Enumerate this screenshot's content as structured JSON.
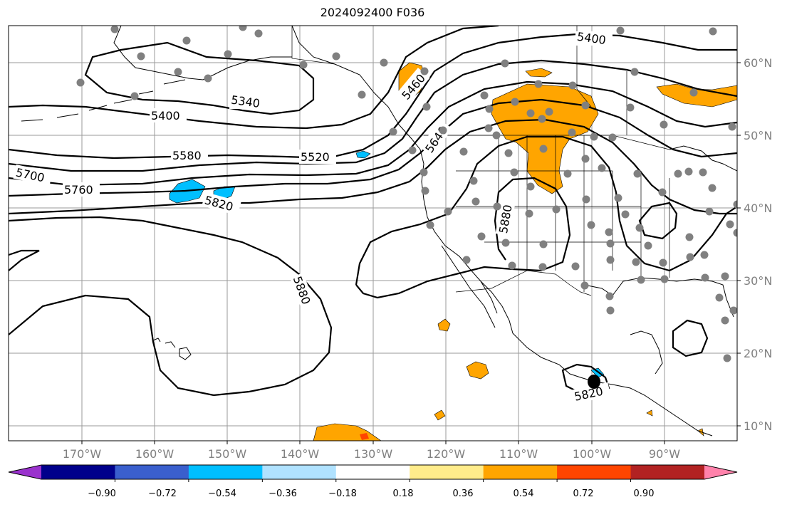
{
  "title": "2024092400 F036",
  "map": {
    "lon_range": [
      -180,
      -80
    ],
    "lat_range": [
      8,
      65
    ],
    "lon_labels": [
      "170°W",
      "160°W",
      "150°W",
      "140°W",
      "130°W",
      "120°W",
      "110°W",
      "100°W",
      "90°W"
    ],
    "lat_labels": [
      "10°N",
      "20°N",
      "30°N",
      "40°N",
      "50°N",
      "60°N"
    ]
  },
  "contours": {
    "color": "#000000",
    "labels": [
      "5400",
      "5340",
      "5400",
      "5460",
      "5580",
      "5520",
      "5640",
      "5700",
      "5760",
      "5820",
      "5880",
      "5880",
      "5820"
    ]
  },
  "colorbar": {
    "colors": [
      "#9a32cd",
      "#00008b",
      "#3a5fcd",
      "#00bfff",
      "#b0e2ff",
      "#ffffff",
      "#ffec8b",
      "#ffa500",
      "#ff4500",
      "#b22222",
      "#ff82ab"
    ],
    "ticks": [
      "−0.90",
      "−0.72",
      "−0.54",
      "−0.36",
      "−0.18",
      "0.18",
      "0.36",
      "0.54",
      "0.72",
      "0.90"
    ]
  },
  "stations_color": "#808080"
}
